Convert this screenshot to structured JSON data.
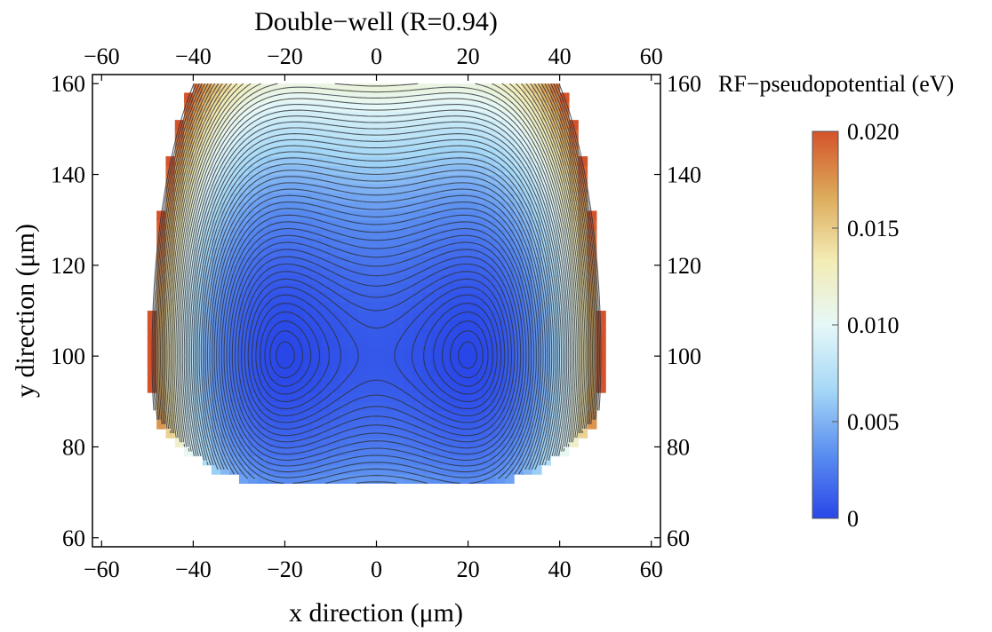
{
  "chart_data": {
    "type": "contour",
    "title": "Double−well (R=0.94)",
    "xlabel": "x direction (μm)",
    "ylabel": "y direction (μm)",
    "xlim": [
      -62,
      62
    ],
    "ylim": [
      58,
      162
    ],
    "xticks": [
      -60,
      -40,
      -20,
      0,
      20,
      40,
      60
    ],
    "yticks": [
      60,
      80,
      100,
      120,
      140,
      160
    ],
    "xtick_labels": [
      "−60",
      "−40",
      "−20",
      "0",
      "20",
      "40",
      "60"
    ],
    "ytick_labels": [
      "60",
      "80",
      "100",
      "120",
      "140",
      "160"
    ],
    "colorbar": {
      "label": "RF−pseudopotential (eV)",
      "range": [
        0,
        0.02
      ],
      "ticks": [
        0,
        0.005,
        0.01,
        0.015,
        0.02
      ],
      "tick_labels": [
        "0",
        "0.005",
        "0.010",
        "0.015",
        "0.020"
      ],
      "colormap": [
        "#2947e8",
        "#5a8ef0",
        "#a6d8f6",
        "#e6f8f8",
        "#f3ecb4",
        "#dcaa5a",
        "#d5532a"
      ]
    },
    "wells": [
      {
        "x": -20,
        "y": 100,
        "value": 0
      },
      {
        "x": 20,
        "y": 100,
        "value": 0
      }
    ],
    "saddle": {
      "x": 0,
      "y": 103,
      "value": 0.0008
    },
    "domain": {
      "x": [
        -60,
        60
      ],
      "y_bottom_min": 71,
      "y_top": 160
    },
    "grid": false,
    "contour_lines": true,
    "colorbar_placement": "right"
  }
}
